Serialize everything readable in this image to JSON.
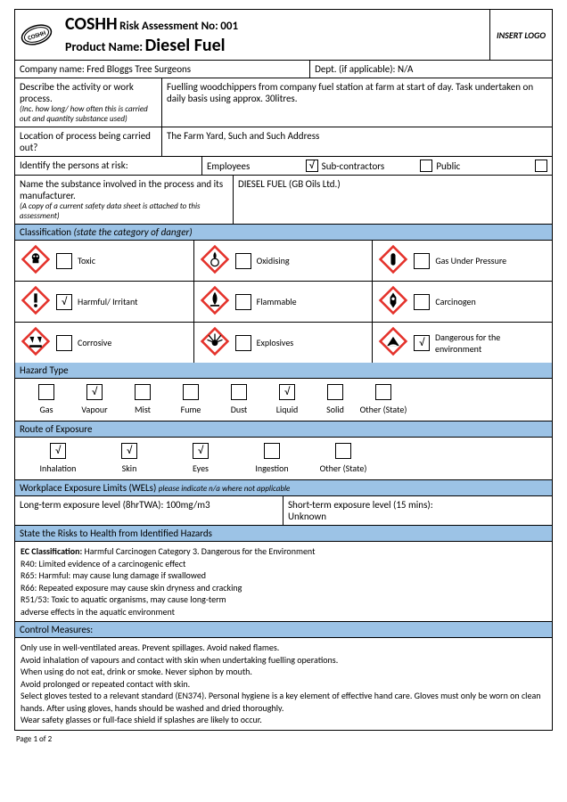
{
  "colors": {
    "section_bg": "#9cc3e6",
    "diamond_border": "#e4322b",
    "border": "#000000"
  },
  "header": {
    "coshh": "COSHH",
    "risk_label": "Risk Assessment No:",
    "risk_no": "001",
    "prod_label": "Product Name:",
    "prod_name": "Diesel Fuel",
    "insert_logo": "INSERT LOGO"
  },
  "company": {
    "label": "Company name:",
    "value": "Fred Bloggs Tree Surgeons"
  },
  "dept": {
    "label": "Dept. (if applicable):",
    "value": "N/A"
  },
  "activity": {
    "label": "Describe the activity or work process.",
    "hint": "(Inc. how long/ how often this is carried out and quantity substance used)",
    "value": "Fuelling woodchippers from company fuel station at farm at start of day. Task undertaken on daily basis using approx. 30litres."
  },
  "location": {
    "label": "Location of process being carried out?",
    "value": "The Farm Yard, Such and Such Address"
  },
  "persons": {
    "label": "Identify the persons at risk:",
    "opts": [
      {
        "label": "Employees",
        "checked": true
      },
      {
        "label": "Sub-contractors",
        "checked": false
      },
      {
        "label": "Public",
        "checked": false
      }
    ]
  },
  "substance": {
    "label": "Name the substance involved in the process and its manufacturer.",
    "hint": "(A copy of a current safety data sheet is attached to this assessment)",
    "value": "DIESEL FUEL (GB Oils Ltd.)"
  },
  "classification": {
    "title": "Classification",
    "hint": "(state the category of danger)",
    "items": [
      {
        "label": "Toxic",
        "checked": false,
        "icon": "skull"
      },
      {
        "label": "Oxidising",
        "checked": false,
        "icon": "flame-o"
      },
      {
        "label": "Gas Under Pressure",
        "checked": false,
        "icon": "cylinder"
      },
      {
        "label": "Harmful/ Irritant",
        "checked": true,
        "icon": "exclaim"
      },
      {
        "label": "Flammable",
        "checked": false,
        "icon": "flame"
      },
      {
        "label": "Carcinogen",
        "checked": false,
        "icon": "health"
      },
      {
        "label": "Corrosive",
        "checked": false,
        "icon": "corrosive"
      },
      {
        "label": "Explosives",
        "checked": false,
        "icon": "explode"
      },
      {
        "label": "Dangerous for the environment",
        "checked": true,
        "icon": "env"
      }
    ]
  },
  "hazard_type": {
    "title": "Hazard Type",
    "items": [
      {
        "label": "Gas",
        "checked": false
      },
      {
        "label": "Vapour",
        "checked": true
      },
      {
        "label": "Mist",
        "checked": false
      },
      {
        "label": "Fume",
        "checked": false
      },
      {
        "label": "Dust",
        "checked": false
      },
      {
        "label": "Liquid",
        "checked": true
      },
      {
        "label": "Solid",
        "checked": false
      },
      {
        "label": "Other  (State)",
        "checked": false
      }
    ]
  },
  "route": {
    "title": "Route of Exposure",
    "items": [
      {
        "label": "Inhalation",
        "checked": true
      },
      {
        "label": "Skin",
        "checked": true
      },
      {
        "label": "Eyes",
        "checked": true
      },
      {
        "label": "Ingestion",
        "checked": false
      },
      {
        "label": "Other    (State)",
        "checked": false
      }
    ]
  },
  "wels": {
    "title": "Workplace Exposure Limits (WELs)",
    "hint": "please indicate n/a where not applicable",
    "long_label": "Long-term exposure level (8hrTWA):",
    "long_value": "100mg/m3",
    "short_label": "Short-term exposure level (15 mins):",
    "short_value": "Unknown"
  },
  "risks": {
    "title": "State the Risks to Health from Identified Hazards",
    "lines": [
      "EC Classification: Harmful Carcinogen Category 3. Dangerous for the Environment",
      "R40: Limited evidence of a carcinogenic effect",
      "R65: Harmful: may cause lung damage if swallowed",
      "R66: Repeated exposure may cause skin dryness and cracking",
      "R51/53: Toxic to aquatic organisms, may cause long-term",
      "adverse effects in the aquatic environment"
    ]
  },
  "controls": {
    "title": "Control Measures:",
    "lines": [
      "Only use in well-ventilated areas. Prevent spillages. Avoid naked flames.",
      "Avoid inhalation of vapours and contact with skin when undertaking fuelling operations.",
      "When using do not eat, drink or smoke. Never siphon by mouth.",
      "Avoid prolonged or repeated contact with skin.",
      "Select gloves tested to a relevant standard (EN374). Personal hygiene is a key element of effective hand care. Gloves must only be worn on clean hands. After using gloves, hands should be washed and dried thoroughly.",
      "Wear safety glasses or full-face shield if splashes are likely to occur."
    ]
  },
  "footer": "Page 1 of 2"
}
